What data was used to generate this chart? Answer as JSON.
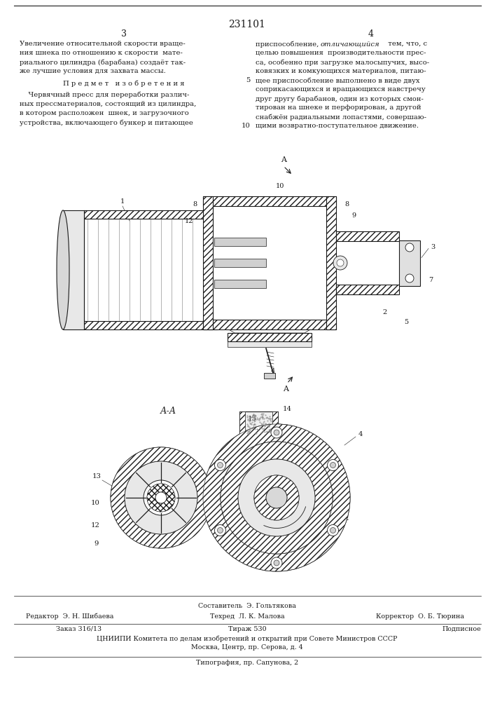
{
  "patent_number": "231101",
  "page_left": "3",
  "page_right": "4",
  "bg_color": "#ffffff",
  "text_color": "#1a1a1a",
  "footer": {
    "compiler_label": "Составитель",
    "compiler_name": "Э. Гольтякова",
    "editor_label": "Редактор",
    "editor_name": "Э. Н. Шибаева",
    "tech_label": "Техред",
    "tech_name": "Л. К. Малова",
    "corrector_label": "Корректор",
    "corrector_name": "О. Б. Тюрина",
    "order": "Заказ 316/13",
    "circulation": "Тираж 530",
    "subscription": "Подписное",
    "institution": "ЦНИИПИ Комитета по делам изобретений и открытий при Совете Министров СССР",
    "address": "Москва, Центр, пр. Серова, д. 4",
    "printing": "Типография, пр. Сапунова, 2"
  }
}
